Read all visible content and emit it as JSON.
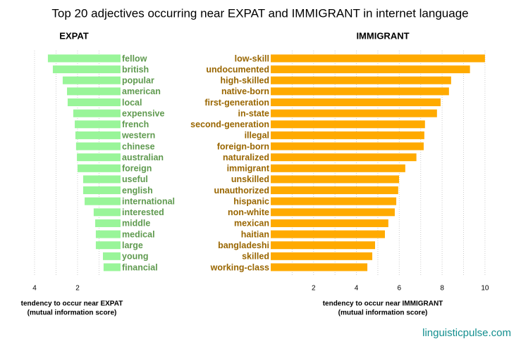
{
  "title": "Top 20 adjectives occurring near EXPAT and IMMIGRANT in internet language",
  "footer": "linguisticpulse.com",
  "chart_data": [
    {
      "type": "bar",
      "orientation": "horizontal",
      "title": "EXPAT",
      "categories": [
        "fellow",
        "british",
        "popular",
        "american",
        "local",
        "expensive",
        "french",
        "western",
        "chinese",
        "australian",
        "foreign",
        "useful",
        "english",
        "international",
        "interested",
        "middle",
        "medical",
        "large",
        "young",
        "financial"
      ],
      "values": [
        3.38,
        3.15,
        2.69,
        2.49,
        2.46,
        2.2,
        2.13,
        2.1,
        2.07,
        2.03,
        2.0,
        1.74,
        1.74,
        1.67,
        1.25,
        1.18,
        1.15,
        1.15,
        0.82,
        0.79
      ],
      "color": "#99f599",
      "label_color": "#5f9a4f",
      "xlim": [
        4.5,
        0
      ],
      "xticks": [
        4,
        2
      ],
      "minor_xticks": [
        3,
        1
      ],
      "grid": true,
      "x_label": [
        "tendency to occur near EXPAT",
        "(mutual information score)"
      ]
    },
    {
      "type": "bar",
      "orientation": "horizontal",
      "title": "IMMIGRANT",
      "categories": [
        "low-skill",
        "undocumented",
        "high-skilled",
        "native-born",
        "first-generation",
        "in-state",
        "second-generation",
        "illegal",
        "foreign-born",
        "naturalized",
        "immigrant",
        "unskilled",
        "unauthorized",
        "hispanic",
        "non-white",
        "mexican",
        "haitian",
        "bangladeshi",
        "skilled",
        "working-class"
      ],
      "values": [
        10.0,
        9.3,
        8.42,
        8.32,
        7.93,
        7.76,
        7.2,
        7.17,
        7.14,
        6.8,
        6.28,
        5.99,
        5.95,
        5.86,
        5.79,
        5.49,
        5.33,
        4.87,
        4.74,
        4.51
      ],
      "color": "#ffaa00",
      "label_color": "#996600",
      "xlim": [
        0,
        10.3
      ],
      "xticks": [
        2,
        4,
        6,
        8,
        10
      ],
      "minor_xticks": [
        1,
        3,
        5,
        7,
        9
      ],
      "grid": true,
      "x_label": [
        "tendency to occur near IMMIGRANT",
        "(mutual information score)"
      ]
    }
  ]
}
